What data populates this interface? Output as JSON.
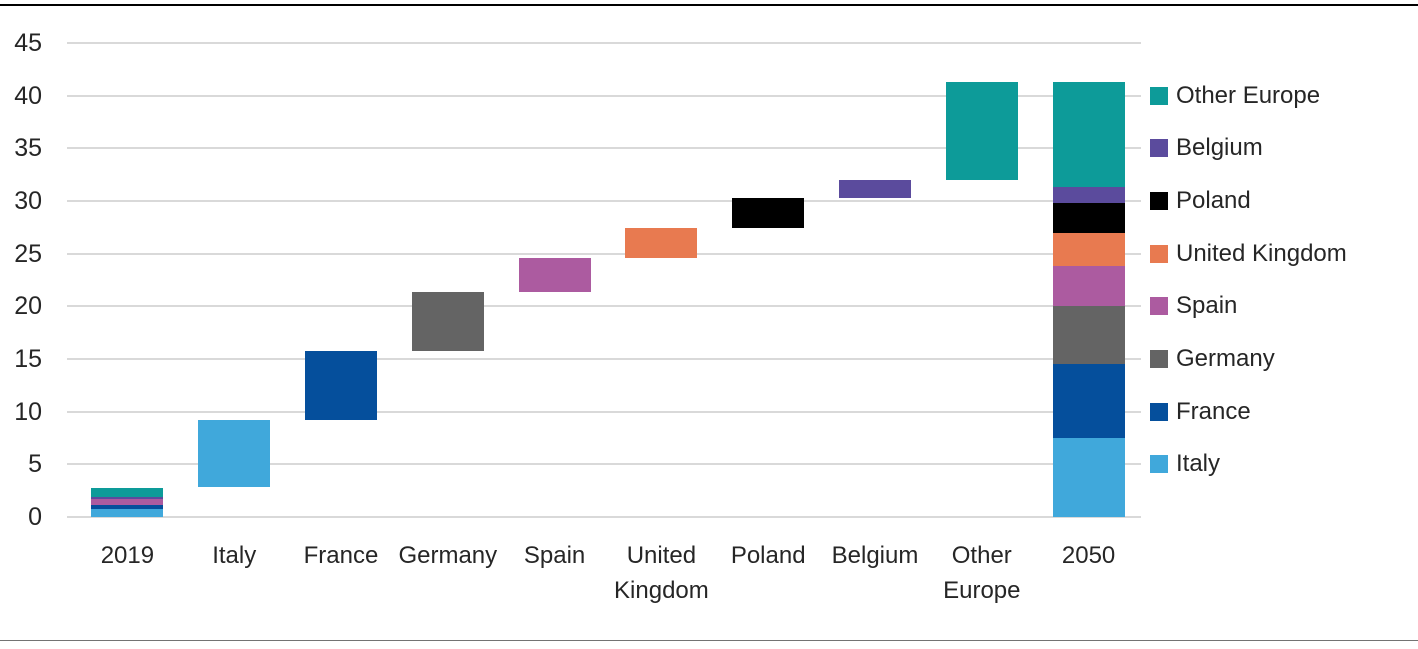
{
  "page": {
    "background": "#ffffff",
    "top_rule_color": "#000000",
    "bottom_rule_color": "#737373",
    "text_color": "#262626"
  },
  "chart_data": {
    "type": "waterfall",
    "title": "",
    "xlabel": "",
    "ylabel": "",
    "grid": "horizontal",
    "y_axis": {
      "min": 0,
      "max": 45,
      "tick_step": 5,
      "ticks": [
        45,
        40,
        35,
        30,
        25,
        20,
        15,
        10,
        5,
        0
      ],
      "gridline_color": "#d9d9d9"
    },
    "series_colors": {
      "Italy": "#40a8db",
      "France": "#054f9c",
      "Germany": "#646464",
      "Spain": "#ac5ba0",
      "United Kingdom": "#e87a50",
      "Poland": "#000000",
      "Belgium": "#5b4b9d",
      "Other Europe": "#0d9b99"
    },
    "columns": [
      {
        "label": "2019",
        "segments": [
          {
            "series": "Italy",
            "from": 0,
            "to": 0.8
          },
          {
            "series": "France",
            "from": 0.8,
            "to": 1.15
          },
          {
            "series": "Spain",
            "from": 1.15,
            "to": 1.7
          },
          {
            "series": "Belgium",
            "from": 1.7,
            "to": 1.9
          },
          {
            "series": "Other Europe",
            "from": 1.9,
            "to": 2.8
          }
        ]
      },
      {
        "label": "Italy",
        "segments": [
          {
            "series": "Italy",
            "from": 2.8,
            "to": 9.2
          }
        ]
      },
      {
        "label": "France",
        "segments": [
          {
            "series": "France",
            "from": 9.2,
            "to": 15.8
          }
        ]
      },
      {
        "label": "Germany",
        "segments": [
          {
            "series": "Germany",
            "from": 15.8,
            "to": 21.4
          }
        ]
      },
      {
        "label": "Spain",
        "segments": [
          {
            "series": "Spain",
            "from": 21.4,
            "to": 24.6
          }
        ]
      },
      {
        "label": "United\nKingdom",
        "segments": [
          {
            "series": "United Kingdom",
            "from": 24.6,
            "to": 27.4
          }
        ]
      },
      {
        "label": "Poland",
        "segments": [
          {
            "series": "Poland",
            "from": 27.4,
            "to": 30.3
          }
        ]
      },
      {
        "label": "Belgium",
        "segments": [
          {
            "series": "Belgium",
            "from": 30.3,
            "to": 32.0
          }
        ]
      },
      {
        "label": "Other\nEurope",
        "segments": [
          {
            "series": "Other Europe",
            "from": 32.0,
            "to": 41.3
          }
        ]
      },
      {
        "label": "2050",
        "segments": [
          {
            "series": "Italy",
            "from": 0,
            "to": 7.5
          },
          {
            "series": "France",
            "from": 7.5,
            "to": 14.5
          },
          {
            "series": "Germany",
            "from": 14.5,
            "to": 20.0
          },
          {
            "series": "Spain",
            "from": 20.0,
            "to": 23.8
          },
          {
            "series": "United Kingdom",
            "from": 23.8,
            "to": 27.0
          },
          {
            "series": "Poland",
            "from": 27.0,
            "to": 29.8
          },
          {
            "series": "Belgium",
            "from": 29.8,
            "to": 31.3
          },
          {
            "series": "Other Europe",
            "from": 31.3,
            "to": 41.3
          }
        ]
      }
    ],
    "legend": {
      "position": "right",
      "items": [
        "Other Europe",
        "Belgium",
        "Poland",
        "United Kingdom",
        "Spain",
        "Germany",
        "France",
        "Italy"
      ]
    }
  }
}
